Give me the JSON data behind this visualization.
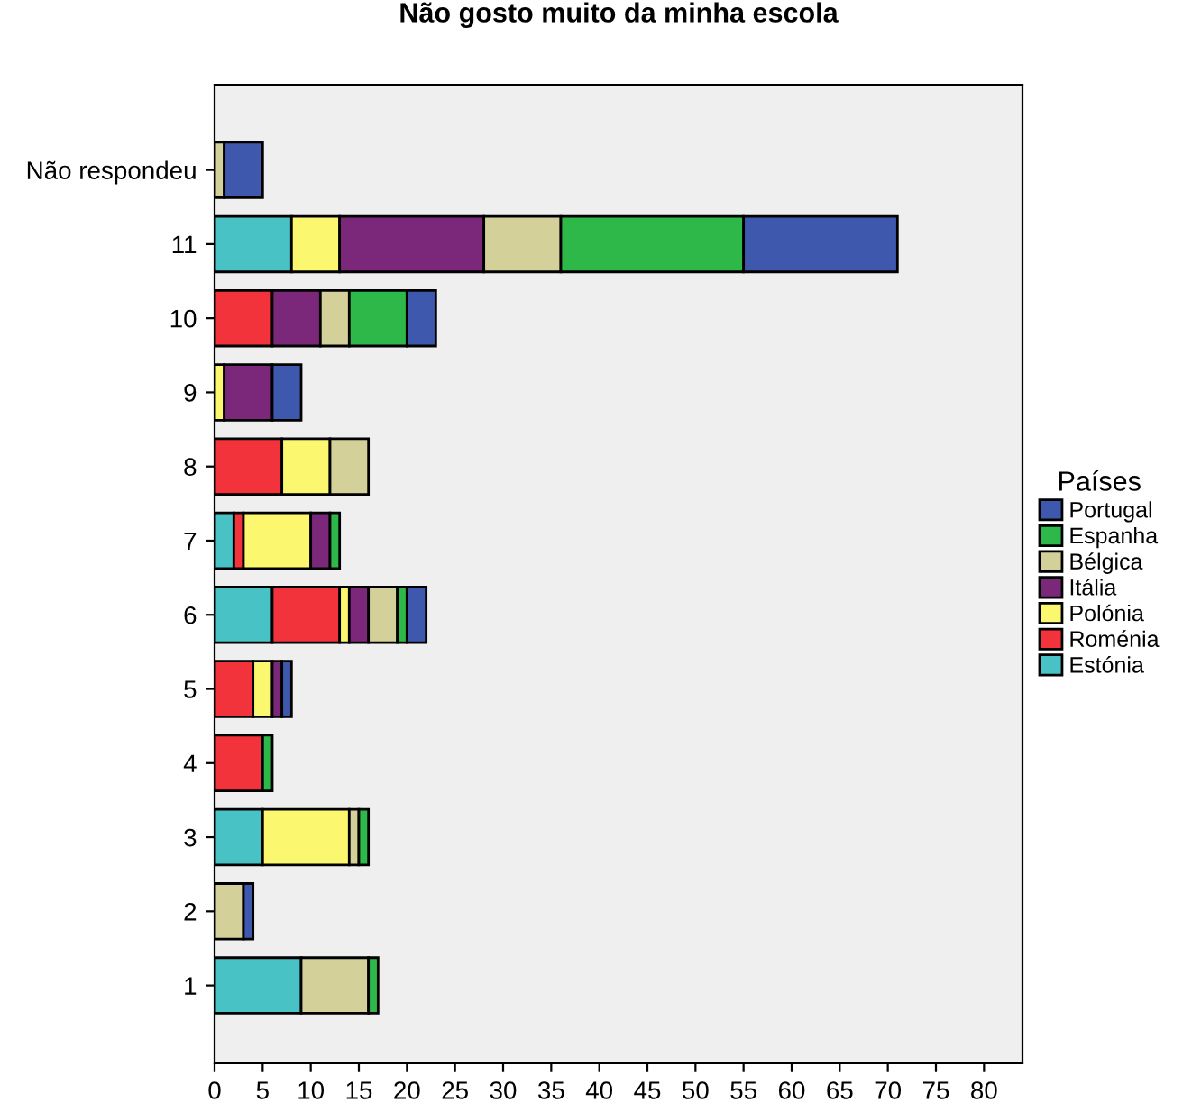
{
  "chart_data": {
    "type": "bar",
    "orientation": "horizontal",
    "stacked": true,
    "title": "Não gosto muito da minha escola",
    "legend_title": "Países",
    "legend": "right",
    "grid": false,
    "categories": [
      "Não respondeu",
      "11",
      "10",
      "9",
      "8",
      "7",
      "6",
      "5",
      "4",
      "3",
      "2",
      "1"
    ],
    "xlim": [
      0,
      84
    ],
    "xticks": [
      0,
      5,
      10,
      15,
      20,
      25,
      30,
      35,
      40,
      45,
      50,
      55,
      60,
      65,
      70,
      75,
      80
    ],
    "series": [
      {
        "name": "Estónia",
        "color": "#48c2c5",
        "values": [
          null,
          8,
          null,
          null,
          null,
          2,
          6,
          null,
          null,
          5,
          null,
          9
        ]
      },
      {
        "name": "Roménia",
        "color": "#f2333b",
        "values": [
          null,
          null,
          6,
          null,
          7,
          1,
          7,
          4,
          5,
          null,
          null,
          null
        ]
      },
      {
        "name": "Polónia",
        "color": "#fbf870",
        "values": [
          null,
          5,
          null,
          1,
          5,
          7,
          1,
          2,
          null,
          9,
          null,
          null
        ]
      },
      {
        "name": "Itália",
        "color": "#7b287b",
        "values": [
          null,
          15,
          5,
          5,
          null,
          2,
          2,
          1,
          null,
          null,
          null,
          null
        ]
      },
      {
        "name": "Bélgica",
        "color": "#d4d09a",
        "values": [
          1,
          8,
          3,
          null,
          4,
          null,
          3,
          null,
          null,
          1,
          3,
          7
        ]
      },
      {
        "name": "Espanha",
        "color": "#2fb84a",
        "values": [
          null,
          19,
          6,
          null,
          null,
          1,
          1,
          null,
          1,
          1,
          null,
          1
        ]
      },
      {
        "name": "Portugal",
        "color": "#3d58ad",
        "values": [
          4,
          16,
          3,
          3,
          null,
          null,
          2,
          1,
          null,
          null,
          1,
          null
        ]
      }
    ]
  }
}
